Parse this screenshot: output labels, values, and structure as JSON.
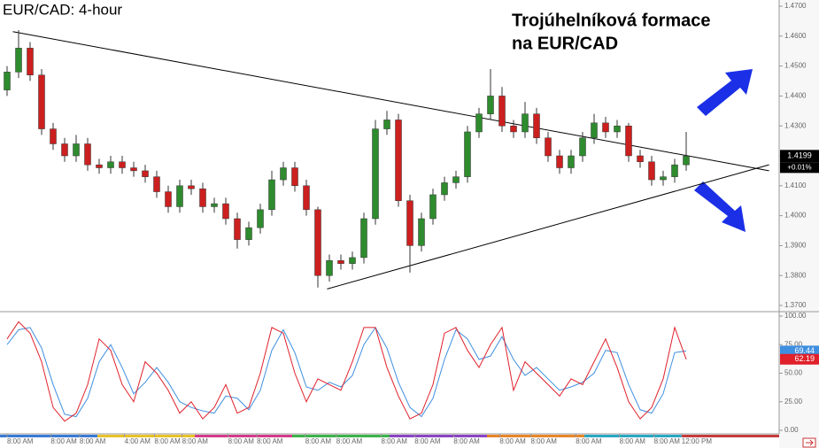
{
  "chart_data": [
    {
      "type": "candlestick",
      "title": "EUR/CAD: 4-hour",
      "annotation": [
        "Trojúhelníková formace",
        "na EUR/CAD"
      ],
      "up_color": "#2e8b2e",
      "down_color": "#cc1f1f",
      "open": [
        1.442,
        1.448,
        1.456,
        1.447,
        1.429,
        1.424,
        1.42,
        1.424,
        1.417,
        1.416,
        1.418,
        1.416,
        1.415,
        1.413,
        1.408,
        1.403,
        1.41,
        1.409,
        1.403,
        1.404,
        1.399,
        1.392,
        1.396,
        1.402,
        1.412,
        1.416,
        1.41,
        1.402,
        1.38,
        1.385,
        1.384,
        1.386,
        1.399,
        1.429,
        1.432,
        1.405,
        1.39,
        1.399,
        1.407,
        1.411,
        1.413,
        1.428,
        1.434,
        1.44,
        1.43,
        1.428,
        1.434,
        1.426,
        1.42,
        1.416,
        1.42,
        1.426,
        1.431,
        1.428,
        1.43,
        1.42,
        1.418,
        1.412,
        1.413,
        1.417
      ],
      "high": [
        1.45,
        1.462,
        1.458,
        1.449,
        1.431,
        1.426,
        1.427,
        1.426,
        1.419,
        1.42,
        1.42,
        1.418,
        1.417,
        1.415,
        1.41,
        1.412,
        1.412,
        1.411,
        1.406,
        1.406,
        1.401,
        1.398,
        1.404,
        1.415,
        1.418,
        1.418,
        1.412,
        1.403,
        1.387,
        1.387,
        1.388,
        1.401,
        1.432,
        1.435,
        1.434,
        1.407,
        1.401,
        1.409,
        1.413,
        1.415,
        1.43,
        1.436,
        1.449,
        1.443,
        1.432,
        1.438,
        1.436,
        1.428,
        1.422,
        1.422,
        1.428,
        1.434,
        1.433,
        1.432,
        1.431,
        1.422,
        1.42,
        1.415,
        1.419,
        1.428
      ],
      "low": [
        1.44,
        1.446,
        1.445,
        1.427,
        1.422,
        1.418,
        1.418,
        1.415,
        1.414,
        1.414,
        1.414,
        1.413,
        1.411,
        1.406,
        1.401,
        1.401,
        1.407,
        1.401,
        1.401,
        1.397,
        1.389,
        1.39,
        1.394,
        1.4,
        1.41,
        1.408,
        1.4,
        1.376,
        1.378,
        1.382,
        1.382,
        1.384,
        1.397,
        1.427,
        1.403,
        1.381,
        1.388,
        1.397,
        1.405,
        1.409,
        1.411,
        1.426,
        1.432,
        1.428,
        1.426,
        1.426,
        1.424,
        1.418,
        1.414,
        1.414,
        1.418,
        1.424,
        1.426,
        1.426,
        1.418,
        1.416,
        1.41,
        1.41,
        1.411,
        1.415
      ],
      "close": [
        1.448,
        1.456,
        1.447,
        1.429,
        1.424,
        1.42,
        1.424,
        1.417,
        1.416,
        1.418,
        1.416,
        1.415,
        1.413,
        1.408,
        1.403,
        1.41,
        1.409,
        1.403,
        1.404,
        1.399,
        1.392,
        1.396,
        1.402,
        1.412,
        1.416,
        1.41,
        1.402,
        1.38,
        1.385,
        1.384,
        1.386,
        1.399,
        1.429,
        1.432,
        1.405,
        1.39,
        1.399,
        1.407,
        1.411,
        1.413,
        1.428,
        1.434,
        1.44,
        1.43,
        1.428,
        1.434,
        1.426,
        1.42,
        1.416,
        1.42,
        1.426,
        1.431,
        1.428,
        1.43,
        1.42,
        1.418,
        1.412,
        1.413,
        1.417,
        1.4199
      ],
      "trendlines": [
        {
          "x": [
            0.5,
            66.2
          ],
          "y": [
            1.4615,
            1.415
          ]
        },
        {
          "x": [
            27.8,
            66.2
          ],
          "y": [
            1.3755,
            1.417
          ]
        }
      ],
      "last_price": 1.4199,
      "change_label": "+0.01%",
      "ylim": [
        1.37,
        1.47
      ],
      "yticks": [
        {
          "value": 1.37,
          "label": "1.3700"
        },
        {
          "value": 1.38,
          "label": "1.3800"
        },
        {
          "value": 1.39,
          "label": "1.3900"
        },
        {
          "value": 1.4,
          "label": "1.4000"
        },
        {
          "value": 1.41,
          "label": "1.4100"
        },
        {
          "value": 1.42,
          "label": "1.4200"
        },
        {
          "value": 1.43,
          "label": "1.4300"
        },
        {
          "value": 1.44,
          "label": "1.4400"
        },
        {
          "value": 1.45,
          "label": "1.4500"
        },
        {
          "value": 1.46,
          "label": "1.4600"
        },
        {
          "value": 1.47,
          "label": "1.4700"
        }
      ],
      "xticks": [
        {
          "value": 0,
          "label": "8:00 AM"
        },
        {
          "value": 3.8,
          "label": "8:00 AM"
        },
        {
          "value": 6.3,
          "label": "8:00 AM"
        },
        {
          "value": 10.2,
          "label": "4:00 AM"
        },
        {
          "value": 12.8,
          "label": "8:00 AM"
        },
        {
          "value": 15.2,
          "label": "8:00 AM"
        },
        {
          "value": 19.2,
          "label": "8:00 AM"
        },
        {
          "value": 21.7,
          "label": "8:00 AM"
        },
        {
          "value": 25.9,
          "label": "8:00 AM"
        },
        {
          "value": 28.6,
          "label": "8:00 AM"
        },
        {
          "value": 32.5,
          "label": "8:00 AM"
        },
        {
          "value": 35.4,
          "label": "8:00 AM"
        },
        {
          "value": 38.8,
          "label": "8:00 AM"
        },
        {
          "value": 42.8,
          "label": "8:00 AM"
        },
        {
          "value": 45.5,
          "label": "8:00 AM"
        },
        {
          "value": 49.4,
          "label": "8:00 AM"
        },
        {
          "value": 53.2,
          "label": "8:00 AM"
        },
        {
          "value": 56.2,
          "label": "8:00 AM"
        },
        {
          "value": 58.6,
          "label": "12:00 PM"
        }
      ]
    },
    {
      "type": "line",
      "series": [
        {
          "color": "#3f8fe0",
          "values": [
            75,
            88,
            90,
            72,
            40,
            14,
            12,
            28,
            60,
            75,
            55,
            32,
            42,
            55,
            42,
            25,
            20,
            17,
            15,
            30,
            28,
            18,
            35,
            70,
            88,
            68,
            38,
            35,
            42,
            38,
            48,
            75,
            90,
            72,
            42,
            20,
            12,
            28,
            62,
            88,
            80,
            62,
            65,
            82,
            62,
            48,
            55,
            45,
            35,
            38,
            42,
            50,
            70,
            68,
            40,
            18,
            15,
            32,
            68,
            69.44
          ]
        },
        {
          "color": "#e0202a",
          "values": [
            80,
            95,
            85,
            60,
            20,
            8,
            15,
            40,
            80,
            70,
            40,
            25,
            60,
            50,
            35,
            15,
            25,
            10,
            20,
            40,
            15,
            20,
            50,
            90,
            85,
            50,
            25,
            45,
            40,
            35,
            60,
            90,
            90,
            55,
            30,
            10,
            15,
            40,
            85,
            90,
            70,
            55,
            75,
            90,
            35,
            60,
            50,
            40,
            30,
            45,
            40,
            60,
            80,
            55,
            25,
            10,
            20,
            45,
            90,
            62.19
          ]
        }
      ],
      "ylim": [
        0,
        100
      ],
      "yticks": [
        {
          "value": 0,
          "label": "0.00"
        },
        {
          "value": 25,
          "label": "25.00"
        },
        {
          "value": 50,
          "label": "50.00"
        },
        {
          "value": 75,
          "label": "75.00"
        },
        {
          "value": 100,
          "label": "100.00"
        }
      ]
    }
  ]
}
